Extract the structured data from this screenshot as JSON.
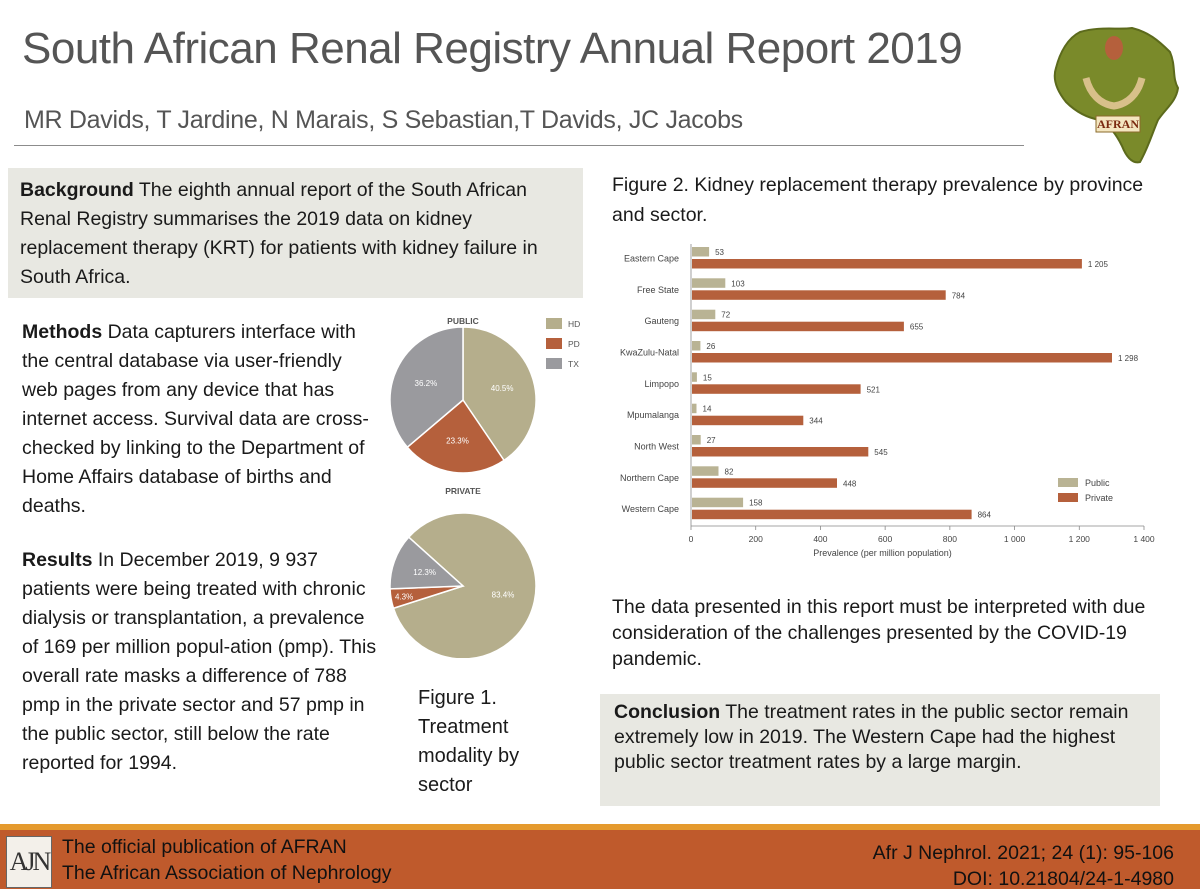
{
  "header": {
    "title": "South African Renal Registry Annual Report 2019",
    "authors": "MR Davids, T Jardine,  N Marais, S Sebastian,T Davids, JC Jacobs",
    "logo_text": "AFRAN"
  },
  "background": {
    "label": "Background",
    "text": " The eighth annual report of the South African Renal Registry summarises the 2019 data on kidney replacement therapy (KRT) for patients with kidney failure in South Africa."
  },
  "methods": {
    "label": "Methods",
    "text": " Data capturers interface with the central database via user-friendly web pages from any device that has internet access. Survival data are cross-checked by linking to the Department of Home Affairs database of births and deaths."
  },
  "results": {
    "label": "Results",
    "text": " In December 2019, 9 937 patients were being treated with chronic dialysis or transplantation, a prevalence of 169 per million popul-ation (pmp). This overall rate masks a difference of 788 pmp in the private sector and 57 pmp in the public sector, still below the rate reported for 1994."
  },
  "figure1": {
    "caption": "Figure 1. Treatment modality by sector"
  },
  "figure2": {
    "caption": "Figure 2. Kidney replacement therapy prevalence by province and sector."
  },
  "covid_note": "The data presented in this report must be interpreted with due consideration of the challenges presented by the COVID-19 pandemic.",
  "conclusion": {
    "label": "Conclusion",
    "text": " The treatment rates in the public sector remain extremely low in 2019. The Western Cape had the highest public sector treatment rates by a large margin."
  },
  "footer": {
    "logo_text": "AJN",
    "left_line1": "The official publication of AFRAN",
    "left_line2": "The African Association of Nephrology",
    "right_line1": "Afr J Nephrol. 2021; 24 (1): 95-106",
    "right_line2": "DOI: 10.21804/24-1-4980"
  },
  "chart_data": [
    {
      "type": "pie",
      "title": "PUBLIC",
      "labels": [
        "HD",
        "PD",
        "TX"
      ],
      "values": [
        40.5,
        23.3,
        36.2
      ],
      "value_labels": [
        "40.5%",
        "23.3%",
        "36.2%"
      ],
      "colors": [
        "#b5ae8c",
        "#b5603c",
        "#9a9a9e"
      ],
      "legend": "right"
    },
    {
      "type": "pie",
      "title": "PRIVATE",
      "labels": [
        "HD",
        "PD",
        "TX"
      ],
      "values": [
        83.4,
        4.3,
        12.3
      ],
      "value_labels": [
        "83.4%",
        "4.3%",
        "12.3%"
      ],
      "colors": [
        "#b5ae8c",
        "#b5603c",
        "#9a9a9e"
      ]
    },
    {
      "type": "bar",
      "orientation": "horizontal",
      "categories": [
        "Eastern Cape",
        "Free State",
        "Gauteng",
        "KwaZulu-Natal",
        "Limpopo",
        "Mpumalanga",
        "North West",
        "Northern Cape",
        "Western Cape"
      ],
      "series": [
        {
          "name": "Public",
          "values": [
            53,
            103,
            72,
            26,
            15,
            14,
            27,
            82,
            158
          ],
          "labels": [
            "53",
            "103",
            "72",
            "26",
            "15",
            "14",
            "27",
            "82",
            "158"
          ],
          "color": "#b9b394"
        },
        {
          "name": "Private",
          "values": [
            1205,
            784,
            655,
            1298,
            521,
            344,
            545,
            448,
            864
          ],
          "labels": [
            "1 205",
            "784",
            "655",
            "1 298",
            "521",
            "344",
            "545",
            "448",
            "864"
          ],
          "color": "#b5603c"
        }
      ],
      "xlabel": "Prevalence (per million population)",
      "xlim": [
        0,
        1400
      ],
      "xticks": [
        0,
        200,
        400,
        600,
        800,
        1000,
        1200,
        1400
      ],
      "xtick_labels": [
        "0",
        "200",
        "400",
        "600",
        "800",
        "1 000",
        "1 200",
        "1 400"
      ],
      "legend": "bottom-right",
      "grid": false
    }
  ]
}
